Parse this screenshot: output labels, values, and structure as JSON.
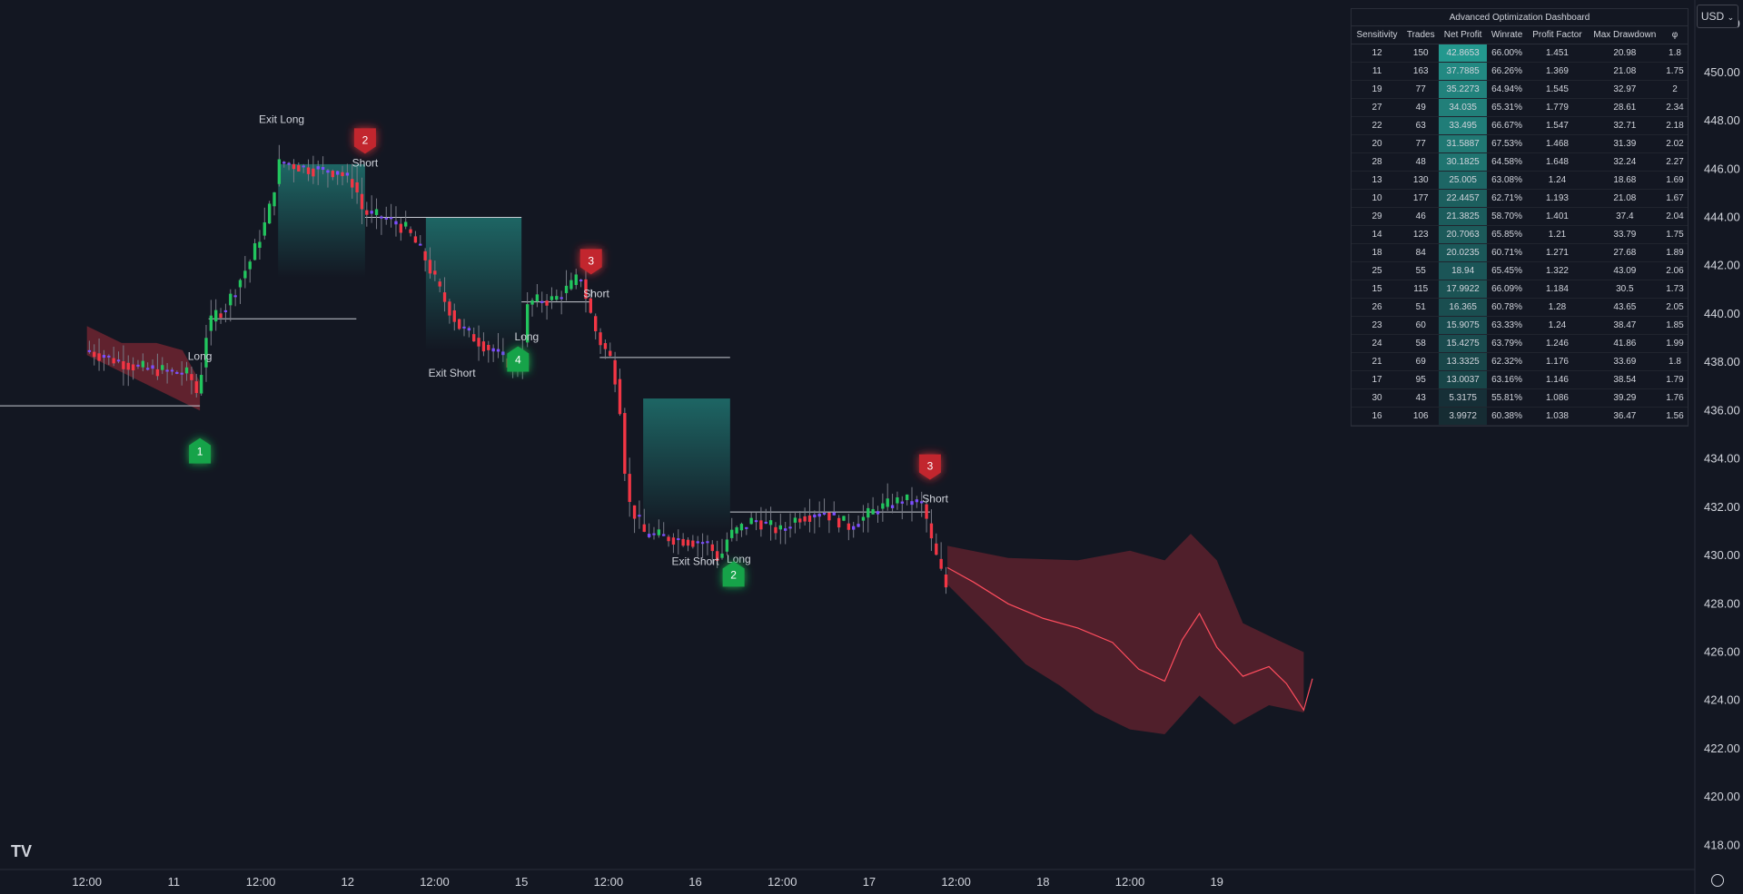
{
  "currency_button": {
    "label": "USD",
    "icon": "chevron-down-icon"
  },
  "logo_text": "TV",
  "colors": {
    "bull": "#22c55e",
    "bear": "#f23645",
    "neutral": "#7c4dff",
    "teal": "#26a69a",
    "bg": "#131722"
  },
  "dashboard": {
    "title": "Advanced Optimization Dashboard",
    "headers": [
      "Sensitivity",
      "Trades",
      "Net Profit",
      "Winrate",
      "Profit Factor",
      "Max Drawdown",
      "φ"
    ],
    "rows": [
      [
        "12",
        "150",
        "42.8653",
        "66.00%",
        "1.451",
        "20.98",
        "1.8"
      ],
      [
        "11",
        "163",
        "37.7885",
        "66.26%",
        "1.369",
        "21.08",
        "1.75"
      ],
      [
        "19",
        "77",
        "35.2273",
        "64.94%",
        "1.545",
        "32.97",
        "2"
      ],
      [
        "27",
        "49",
        "34.035",
        "65.31%",
        "1.779",
        "28.61",
        "2.34"
      ],
      [
        "22",
        "63",
        "33.495",
        "66.67%",
        "1.547",
        "32.71",
        "2.18"
      ],
      [
        "20",
        "77",
        "31.5887",
        "67.53%",
        "1.468",
        "31.39",
        "2.02"
      ],
      [
        "28",
        "48",
        "30.1825",
        "64.58%",
        "1.648",
        "32.24",
        "2.27"
      ],
      [
        "13",
        "130",
        "25.005",
        "63.08%",
        "1.24",
        "18.68",
        "1.69"
      ],
      [
        "10",
        "177",
        "22.4457",
        "62.71%",
        "1.193",
        "21.08",
        "1.67"
      ],
      [
        "29",
        "46",
        "21.3825",
        "58.70%",
        "1.401",
        "37.4",
        "2.04"
      ],
      [
        "14",
        "123",
        "20.7063",
        "65.85%",
        "1.21",
        "33.79",
        "1.75"
      ],
      [
        "18",
        "84",
        "20.0235",
        "60.71%",
        "1.271",
        "27.68",
        "1.89"
      ],
      [
        "25",
        "55",
        "18.94",
        "65.45%",
        "1.322",
        "43.09",
        "2.06"
      ],
      [
        "15",
        "115",
        "17.9922",
        "66.09%",
        "1.184",
        "30.5",
        "1.73"
      ],
      [
        "26",
        "51",
        "16.365",
        "60.78%",
        "1.28",
        "43.65",
        "2.05"
      ],
      [
        "23",
        "60",
        "15.9075",
        "63.33%",
        "1.24",
        "38.47",
        "1.85"
      ],
      [
        "24",
        "58",
        "15.4275",
        "63.79%",
        "1.246",
        "41.86",
        "1.99"
      ],
      [
        "21",
        "69",
        "13.3325",
        "62.32%",
        "1.176",
        "33.69",
        "1.8"
      ],
      [
        "17",
        "95",
        "13.0037",
        "63.16%",
        "1.146",
        "38.54",
        "1.79"
      ],
      [
        "30",
        "43",
        "5.3175",
        "55.81%",
        "1.086",
        "39.29",
        "1.76"
      ],
      [
        "16",
        "106",
        "3.9972",
        "60.38%",
        "1.038",
        "36.47",
        "1.56"
      ]
    ]
  },
  "chart_data": {
    "type": "candlestick",
    "y_range": [
      417,
      453
    ],
    "y_ticks": [
      "452.00",
      "450.00",
      "448.00",
      "446.00",
      "444.00",
      "442.00",
      "440.00",
      "438.00",
      "436.00",
      "434.00",
      "432.00",
      "430.00",
      "428.00",
      "426.00",
      "424.00",
      "422.00",
      "420.00",
      "418.00"
    ],
    "x_range_days": [
      10.0,
      19.75
    ],
    "x_ticks": [
      {
        "label": "12:00",
        "day": 10.5
      },
      {
        "label": "11",
        "day": 11
      },
      {
        "label": "12:00",
        "day": 11.5
      },
      {
        "label": "12",
        "day": 12
      },
      {
        "label": "12:00",
        "day": 12.5
      },
      {
        "label": "15",
        "day": 13
      },
      {
        "label": "12:00",
        "day": 13.5
      },
      {
        "label": "16",
        "day": 14
      },
      {
        "label": "12:00",
        "day": 14.5
      },
      {
        "label": "17",
        "day": 15
      },
      {
        "label": "12:00",
        "day": 15.5
      },
      {
        "label": "18",
        "day": 16
      },
      {
        "label": "12:00",
        "day": 16.5
      },
      {
        "label": "19",
        "day": 17
      }
    ],
    "price_path": [
      [
        10.5,
        438.5
      ],
      [
        10.8,
        437.8
      ],
      [
        11.0,
        437.6
      ],
      [
        11.1,
        437.5
      ],
      [
        11.15,
        436.6
      ],
      [
        11.2,
        439.3
      ],
      [
        11.25,
        440.0
      ],
      [
        11.3,
        440.2
      ],
      [
        11.45,
        442.2
      ],
      [
        11.55,
        444.0
      ],
      [
        11.62,
        446.3
      ],
      [
        11.8,
        446.0
      ],
      [
        11.95,
        445.9
      ],
      [
        12.05,
        445.4
      ],
      [
        12.1,
        444.2
      ],
      [
        12.25,
        443.9
      ],
      [
        12.35,
        443.5
      ],
      [
        12.45,
        442.4
      ],
      [
        12.55,
        440.8
      ],
      [
        12.65,
        439.5
      ],
      [
        12.78,
        438.8
      ],
      [
        12.9,
        438.2
      ],
      [
        13.0,
        437.7
      ],
      [
        13.05,
        440.5
      ],
      [
        13.2,
        440.6
      ],
      [
        13.3,
        441.2
      ],
      [
        13.35,
        441.6
      ],
      [
        13.4,
        440.2
      ],
      [
        13.45,
        439.0
      ],
      [
        13.52,
        438.2
      ],
      [
        13.57,
        436.8
      ],
      [
        13.62,
        432.3
      ],
      [
        13.72,
        430.9
      ],
      [
        13.9,
        430.7
      ],
      [
        14.08,
        430.5
      ],
      [
        14.15,
        429.8
      ],
      [
        14.2,
        430.8
      ],
      [
        14.35,
        431.5
      ],
      [
        14.5,
        431.0
      ],
      [
        14.6,
        431.6
      ],
      [
        14.75,
        431.8
      ],
      [
        14.9,
        431.2
      ],
      [
        15.05,
        431.9
      ],
      [
        15.2,
        432.3
      ],
      [
        15.33,
        432.1
      ],
      [
        15.35,
        431.0
      ],
      [
        15.42,
        429.4
      ],
      [
        15.45,
        428.7
      ]
    ],
    "ribbon_path": [
      [
        10.5,
        439.5
      ],
      [
        10.7,
        438.8
      ],
      [
        10.9,
        438.8
      ],
      [
        11.05,
        438.5
      ],
      [
        11.15,
        437.2
      ]
    ],
    "projection_center": [
      [
        15.45,
        429.5
      ],
      [
        15.6,
        428.9
      ],
      [
        15.8,
        428.0
      ],
      [
        16.0,
        427.4
      ],
      [
        16.2,
        427.0
      ],
      [
        16.4,
        426.4
      ],
      [
        16.55,
        425.3
      ],
      [
        16.7,
        424.8
      ],
      [
        16.8,
        426.5
      ],
      [
        16.9,
        427.6
      ],
      [
        17.0,
        426.2
      ],
      [
        17.15,
        425.0
      ],
      [
        17.3,
        425.4
      ],
      [
        17.4,
        424.7
      ],
      [
        17.5,
        423.6
      ],
      [
        17.55,
        424.9
      ]
    ],
    "projection_upper": [
      [
        15.45,
        430.4
      ],
      [
        15.8,
        429.9
      ],
      [
        16.2,
        429.8
      ],
      [
        16.5,
        430.2
      ],
      [
        16.7,
        429.8
      ],
      [
        16.85,
        430.9
      ],
      [
        17.0,
        429.8
      ],
      [
        17.15,
        427.2
      ],
      [
        17.35,
        426.5
      ],
      [
        17.5,
        426.0
      ]
    ],
    "projection_lower": [
      [
        17.5,
        423.5
      ],
      [
        17.3,
        423.8
      ],
      [
        17.1,
        423.0
      ],
      [
        16.9,
        424.2
      ],
      [
        16.7,
        422.6
      ],
      [
        16.5,
        422.8
      ],
      [
        16.3,
        423.5
      ],
      [
        16.1,
        424.6
      ],
      [
        15.9,
        425.5
      ],
      [
        15.7,
        427.0
      ],
      [
        15.45,
        428.8
      ]
    ],
    "teal_regions": [
      {
        "x_start": 11.6,
        "x_end": 12.1,
        "top": 446.2,
        "bottom": 441.5
      },
      {
        "x_start": 12.45,
        "x_end": 13.0,
        "top": 444.0,
        "bottom": 438.5
      },
      {
        "x_start": 13.7,
        "x_end": 14.2,
        "top": 436.5,
        "bottom": 431.0
      }
    ],
    "levels": [
      {
        "x_start": 10.0,
        "x_end": 11.15,
        "price": 436.2
      },
      {
        "x_start": 11.2,
        "x_end": 12.05,
        "price": 439.8
      },
      {
        "x_start": 12.1,
        "x_end": 13.0,
        "price": 444.0
      },
      {
        "x_start": 13.0,
        "x_end": 13.4,
        "price": 440.5
      },
      {
        "x_start": 13.45,
        "x_end": 14.2,
        "price": 438.2
      },
      {
        "x_start": 14.2,
        "x_end": 15.35,
        "price": 431.8
      }
    ],
    "badges": [
      {
        "label": "1",
        "kind": "bull",
        "day": 11.15,
        "price": 434.3
      },
      {
        "label": "2",
        "kind": "bear",
        "day": 12.1,
        "price": 447.2
      },
      {
        "label": "4",
        "kind": "bull",
        "day": 12.98,
        "price": 438.1
      },
      {
        "label": "3",
        "kind": "bear",
        "day": 13.4,
        "price": 442.2
      },
      {
        "label": "2",
        "kind": "bull",
        "day": 14.22,
        "price": 429.2
      },
      {
        "label": "3",
        "kind": "bear",
        "day": 15.35,
        "price": 433.7
      }
    ],
    "signals": [
      {
        "text": "Long",
        "day": 11.15,
        "price": 438.1
      },
      {
        "text": "Exit Long",
        "day": 11.62,
        "price": 447.9
      },
      {
        "text": "Short",
        "day": 12.1,
        "price": 446.1
      },
      {
        "text": "Exit Short",
        "day": 12.6,
        "price": 437.4
      },
      {
        "text": "Long",
        "day": 13.03,
        "price": 438.9
      },
      {
        "text": "Short",
        "day": 13.43,
        "price": 440.7
      },
      {
        "text": "Exit Short",
        "day": 14.0,
        "price": 429.6
      },
      {
        "text": "Long",
        "day": 14.25,
        "price": 429.7
      },
      {
        "text": "Short",
        "day": 15.38,
        "price": 432.2
      }
    ]
  }
}
